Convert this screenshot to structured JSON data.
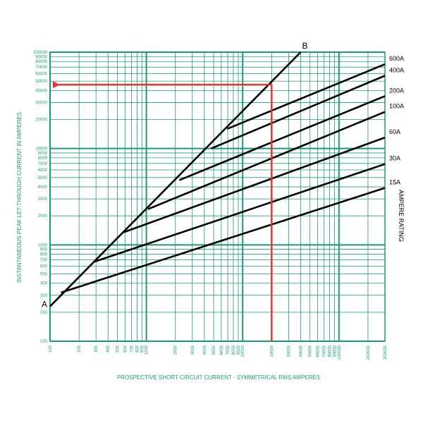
{
  "chart_data": {
    "type": "line",
    "xlabel": "PROSPECTIVE SHORT-CIRCUIT CURRENT - SYMMETRICAL RMS AMPERES",
    "ylabel": "INSTANTANEOUS PEAK LET-THROUGH CURRENT IN AMPERES",
    "xscale": "log",
    "yscale": "log",
    "xlim": [
      100,
      300000
    ],
    "ylim": [
      100,
      100000
    ],
    "grid": true,
    "x_ticks": [
      "100",
      "200",
      "300",
      "400",
      "500",
      "600",
      "700",
      "800",
      "900",
      "1000",
      "2000",
      "3000",
      "4000",
      "5000",
      "6000",
      "7000",
      "8000",
      "9000",
      "10000",
      "20000",
      "30000",
      "40000",
      "50000",
      "60000",
      "70000",
      "80000",
      "90000",
      "100000",
      "200000",
      "300000"
    ],
    "y_ticks": [
      "100",
      "200",
      "300",
      "400",
      "500",
      "600",
      "700",
      "800",
      "900",
      "1000",
      "2000",
      "3000",
      "4000",
      "5000",
      "6000",
      "7000",
      "8000",
      "9000",
      "10000",
      "20000",
      "30000",
      "40000",
      "50000",
      "60000",
      "70000",
      "80000",
      "90000",
      "100000"
    ],
    "ampere_rating_label": "AMPERE RATING",
    "point_a_label": "A",
    "point_b_label": "B",
    "limit_line": {
      "name": "A-B",
      "x": [
        100,
        40000
      ],
      "y": [
        230,
        100000
      ]
    },
    "series": [
      {
        "name": "15A",
        "x": [
          130,
          300000
        ],
        "y": [
          320,
          3900
        ]
      },
      {
        "name": "30A",
        "x": [
          290,
          300000
        ],
        "y": [
          670,
          6900
        ]
      },
      {
        "name": "60A",
        "x": [
          580,
          300000
        ],
        "y": [
          1350,
          13000
        ]
      },
      {
        "name": "100A",
        "x": [
          1040,
          300000
        ],
        "y": [
          2350,
          24000
        ]
      },
      {
        "name": "200A",
        "x": [
          2200,
          300000
        ],
        "y": [
          4700,
          35000
        ]
      },
      {
        "name": "400A",
        "x": [
          4700,
          300000
        ],
        "y": [
          10000,
          57000
        ]
      },
      {
        "name": "600A",
        "x": [
          6900,
          300000
        ],
        "y": [
          16000,
          75000
        ]
      }
    ],
    "example": {
      "x": 20000,
      "y": 46000,
      "color": "#e8322e"
    },
    "colors": {
      "grid": "#1a9a7a",
      "curves": "#000000",
      "example": "#e8322e"
    }
  }
}
